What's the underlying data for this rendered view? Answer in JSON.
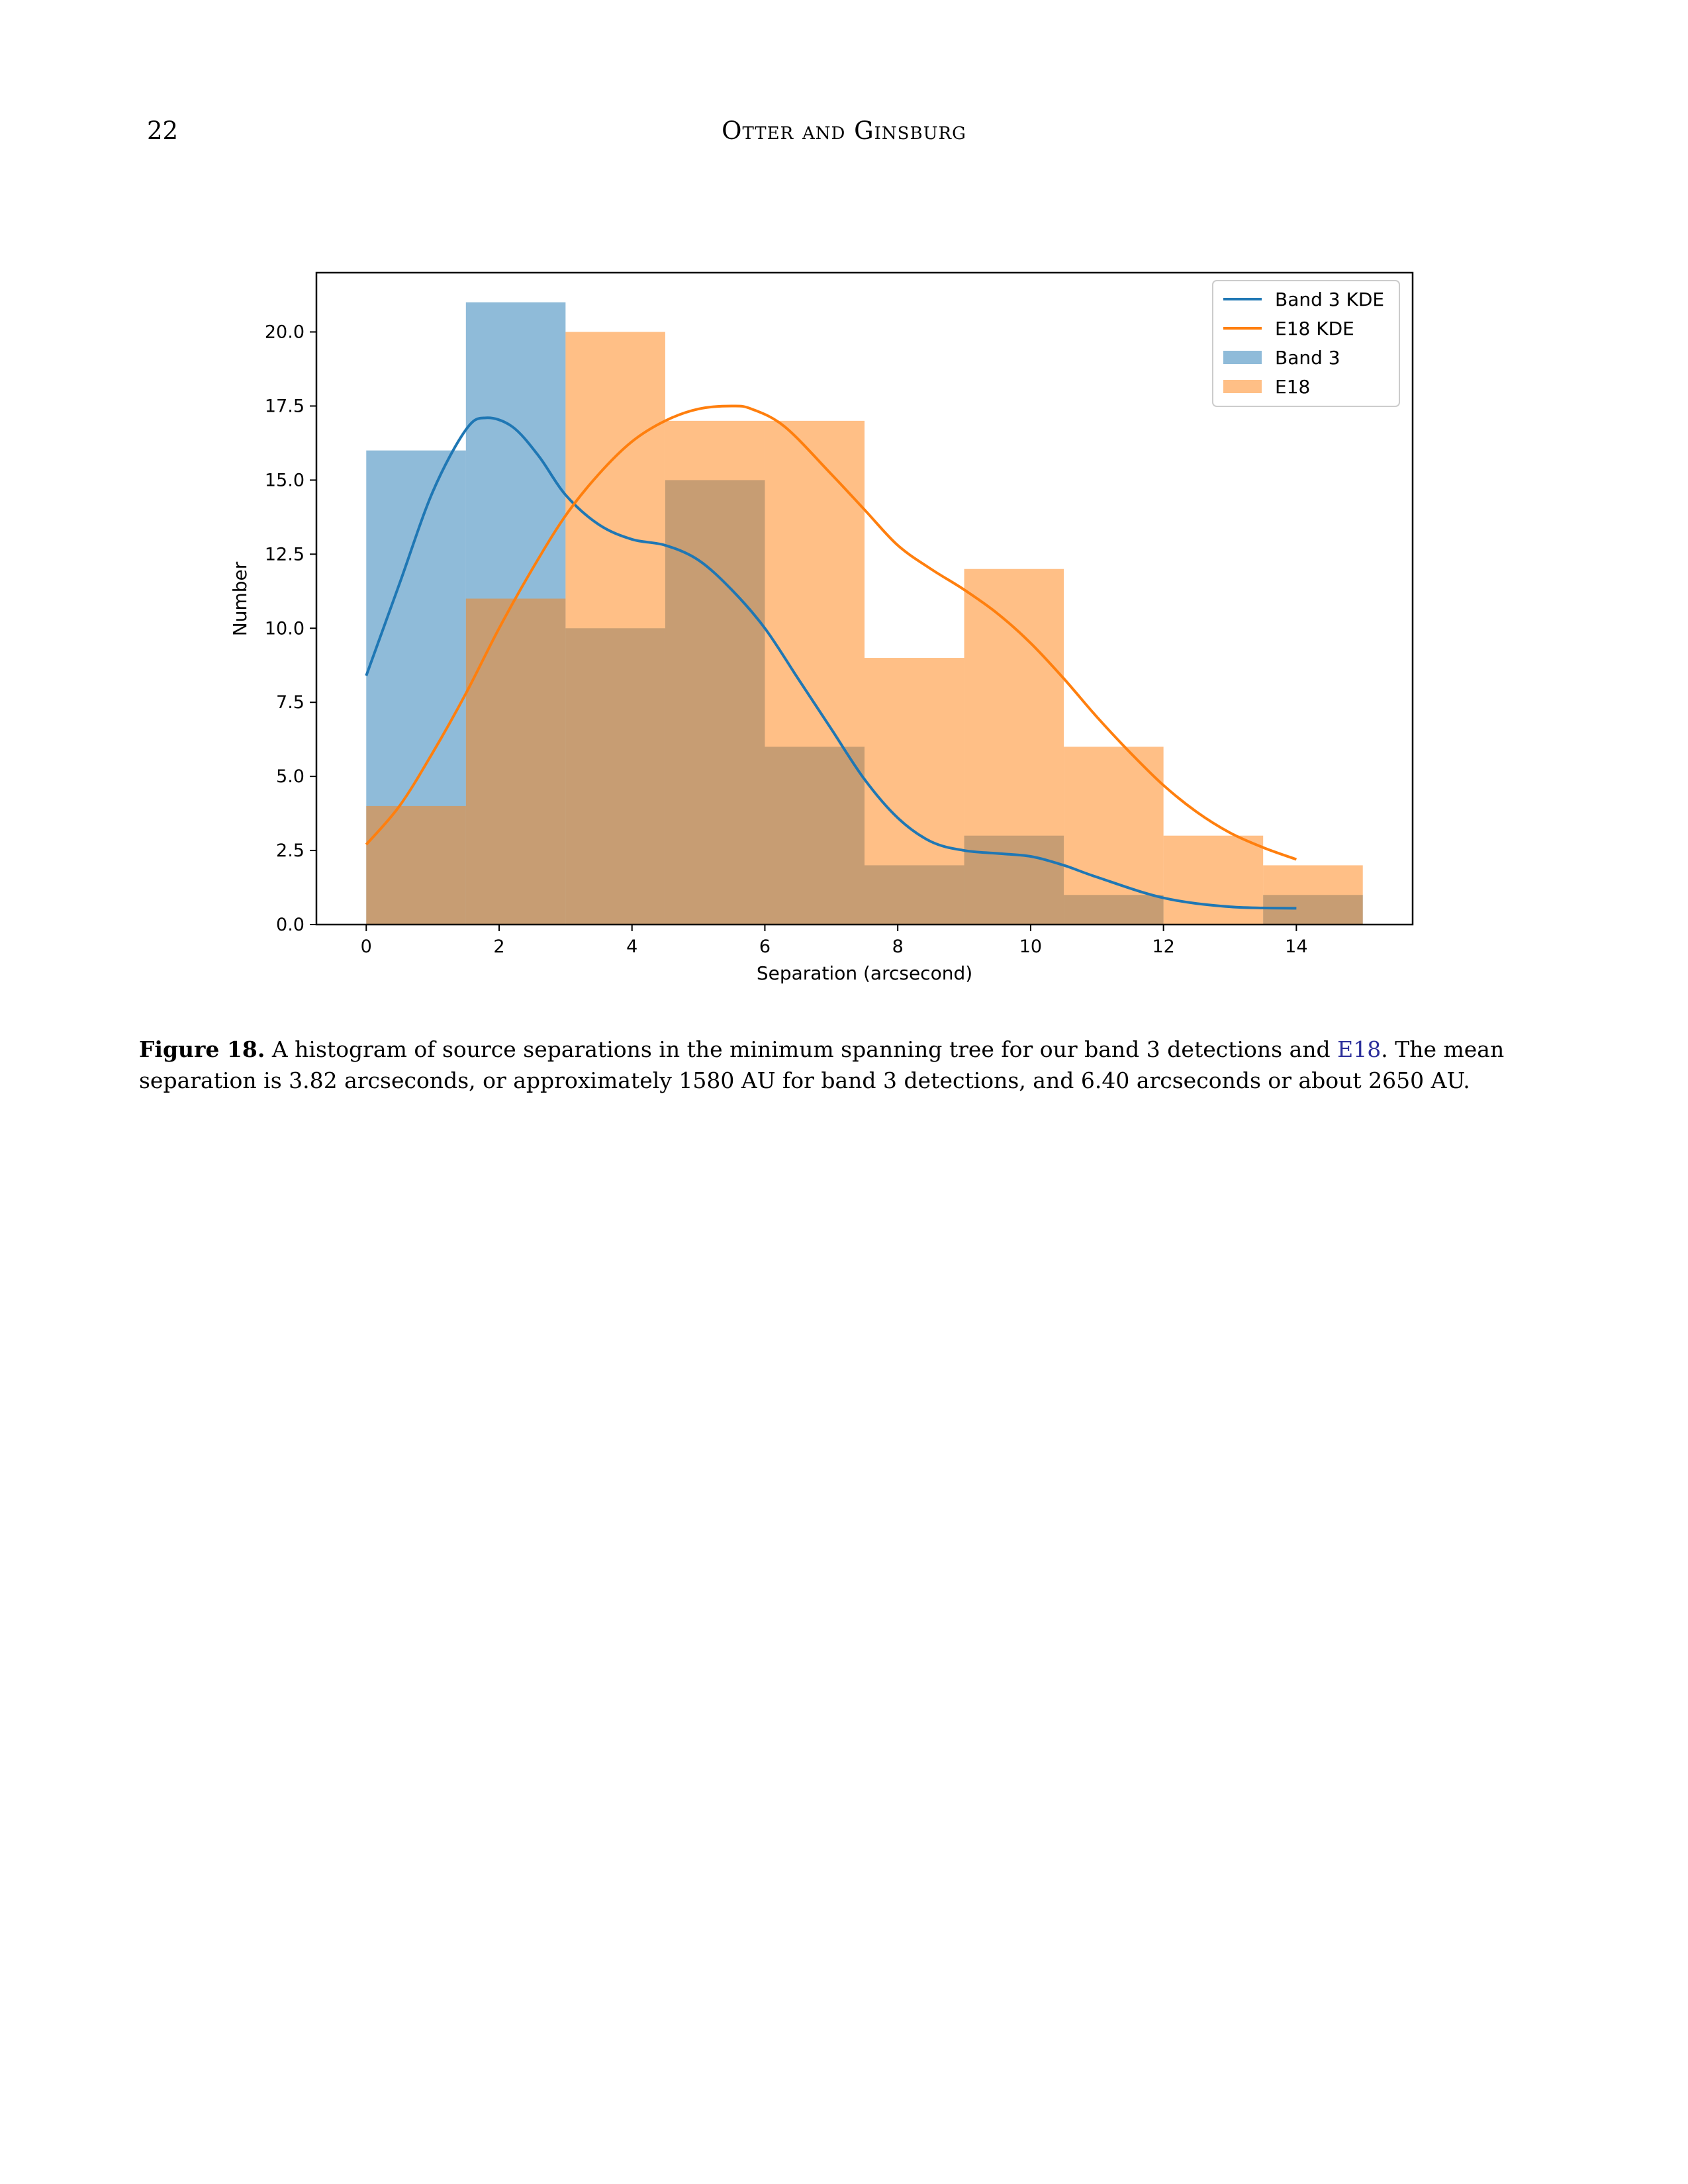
{
  "header": {
    "page_number": "22",
    "running_head": "Otter and Ginsburg"
  },
  "caption": {
    "label": "Figure 18.",
    "text_before_cite": " A histogram of source separations in the minimum spanning tree for our band 3 detections and ",
    "cite": "E18",
    "text_after_cite": ". The mean separation is 3.82 arcseconds, or approximately 1580 AU for band 3 detections, and 6.40 arcseconds or about 2650 AU."
  },
  "chart_data": {
    "type": "histogram",
    "xlabel": "Separation (arcsecond)",
    "ylabel": "Number",
    "xlim": [
      -0.75,
      15.75
    ],
    "ylim": [
      0,
      22
    ],
    "xticks": [
      0,
      2,
      4,
      6,
      8,
      10,
      12,
      14
    ],
    "yticks": [
      0,
      2.5,
      5,
      7.5,
      10,
      12.5,
      15,
      17.5,
      20
    ],
    "ytick_labels": [
      "0.0",
      "2.5",
      "5.0",
      "7.5",
      "10.0",
      "12.5",
      "15.0",
      "17.5",
      "20.0"
    ],
    "legend_position": "top-right",
    "legend": [
      "Band 3 KDE",
      "E18 KDE",
      "Band 3",
      "E18"
    ],
    "histograms": [
      {
        "name": "Band 3",
        "color": "#1f77b4",
        "alpha": 0.5,
        "bin_edges": [
          0,
          1.5,
          3,
          4.5,
          6,
          7.5,
          9,
          10.5,
          12,
          13.5,
          15
        ],
        "counts": [
          16,
          21,
          10,
          15,
          6,
          2,
          3,
          1,
          0,
          1
        ]
      },
      {
        "name": "E18",
        "color": "#ff7f0e",
        "alpha": 0.5,
        "bin_edges": [
          0,
          1.5,
          3,
          4.5,
          6,
          7.5,
          9,
          10.5,
          12,
          13.5,
          15
        ],
        "counts": [
          4,
          11,
          20,
          17,
          17,
          9,
          12,
          6,
          3,
          2
        ]
      }
    ],
    "kde": [
      {
        "name": "Band 3 KDE",
        "color": "#1f77b4",
        "x": [
          0,
          0.5,
          1,
          1.5,
          1.8,
          2.2,
          2.6,
          3,
          3.5,
          4,
          4.5,
          5,
          5.5,
          6,
          6.5,
          7,
          7.5,
          8,
          8.5,
          9,
          9.5,
          10,
          10.5,
          11,
          12,
          13,
          14
        ],
        "y": [
          8.4,
          11.5,
          14.6,
          16.7,
          17.1,
          16.8,
          15.8,
          14.5,
          13.5,
          13.0,
          12.8,
          12.3,
          11.3,
          10.0,
          8.3,
          6.6,
          4.9,
          3.6,
          2.8,
          2.5,
          2.4,
          2.3,
          2.0,
          1.6,
          0.9,
          0.6,
          0.55
        ]
      },
      {
        "name": "E18 KDE",
        "color": "#ff7f0e",
        "x": [
          0,
          0.5,
          1,
          1.5,
          2,
          2.5,
          3,
          3.5,
          4,
          4.5,
          5,
          5.5,
          5.8,
          6.3,
          7,
          7.5,
          8,
          8.5,
          9,
          9.5,
          10,
          10.5,
          11,
          11.5,
          12,
          12.5,
          13,
          13.5,
          14
        ],
        "y": [
          2.7,
          4.0,
          5.8,
          7.8,
          10.0,
          12.0,
          13.8,
          15.2,
          16.3,
          17.0,
          17.4,
          17.5,
          17.4,
          16.8,
          15.2,
          14.0,
          12.8,
          12.0,
          11.3,
          10.5,
          9.5,
          8.3,
          7.0,
          5.8,
          4.7,
          3.8,
          3.1,
          2.6,
          2.2
        ]
      }
    ]
  }
}
